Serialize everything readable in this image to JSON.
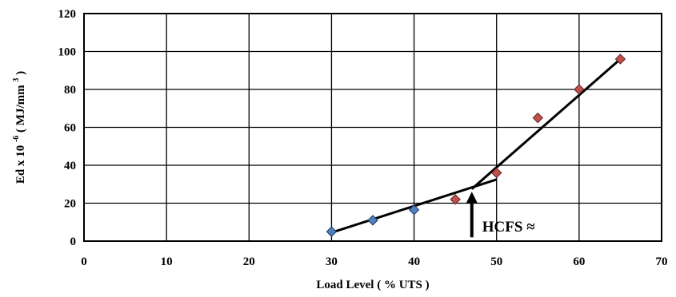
{
  "chart_data": {
    "type": "scatter",
    "title": "",
    "xlabel": "Load Level ( % UTS )",
    "ylabel_parts": {
      "base": "Ed x 10",
      "exponent": "-6",
      "unit_open": "( MJ/mm",
      "unit_exponent": "3",
      "unit_close": ")"
    },
    "xlim": [
      0,
      70
    ],
    "ylim": [
      0,
      120
    ],
    "xticks": [
      0,
      10,
      20,
      30,
      40,
      50,
      60,
      70
    ],
    "yticks": [
      0,
      20,
      40,
      60,
      80,
      100,
      120
    ],
    "grid": true,
    "legend": "none",
    "series": [
      {
        "color_fill": "#4f81bd",
        "color_edge": "#1f3864",
        "points": [
          {
            "x": 30,
            "y": 5
          },
          {
            "x": 35,
            "y": 11
          },
          {
            "x": 40,
            "y": 16.5
          }
        ]
      },
      {
        "color_fill": "#c0504d",
        "color_edge": "#632523",
        "points": [
          {
            "x": 45,
            "y": 22
          },
          {
            "x": 50,
            "y": 36
          },
          {
            "x": 55,
            "y": 65
          },
          {
            "x": 60,
            "y": 80
          },
          {
            "x": 65,
            "y": 96
          }
        ]
      }
    ],
    "trend_lines": [
      {
        "x1": 30,
        "y1": 4.5,
        "x2": 50,
        "y2": 32.5
      },
      {
        "x1": 47,
        "y1": 27.5,
        "x2": 65,
        "y2": 96
      }
    ],
    "annotation": {
      "text": "HCFS ≈",
      "arrow_x": 47,
      "arrow_y_from": 2,
      "arrow_y_to": 26
    }
  }
}
